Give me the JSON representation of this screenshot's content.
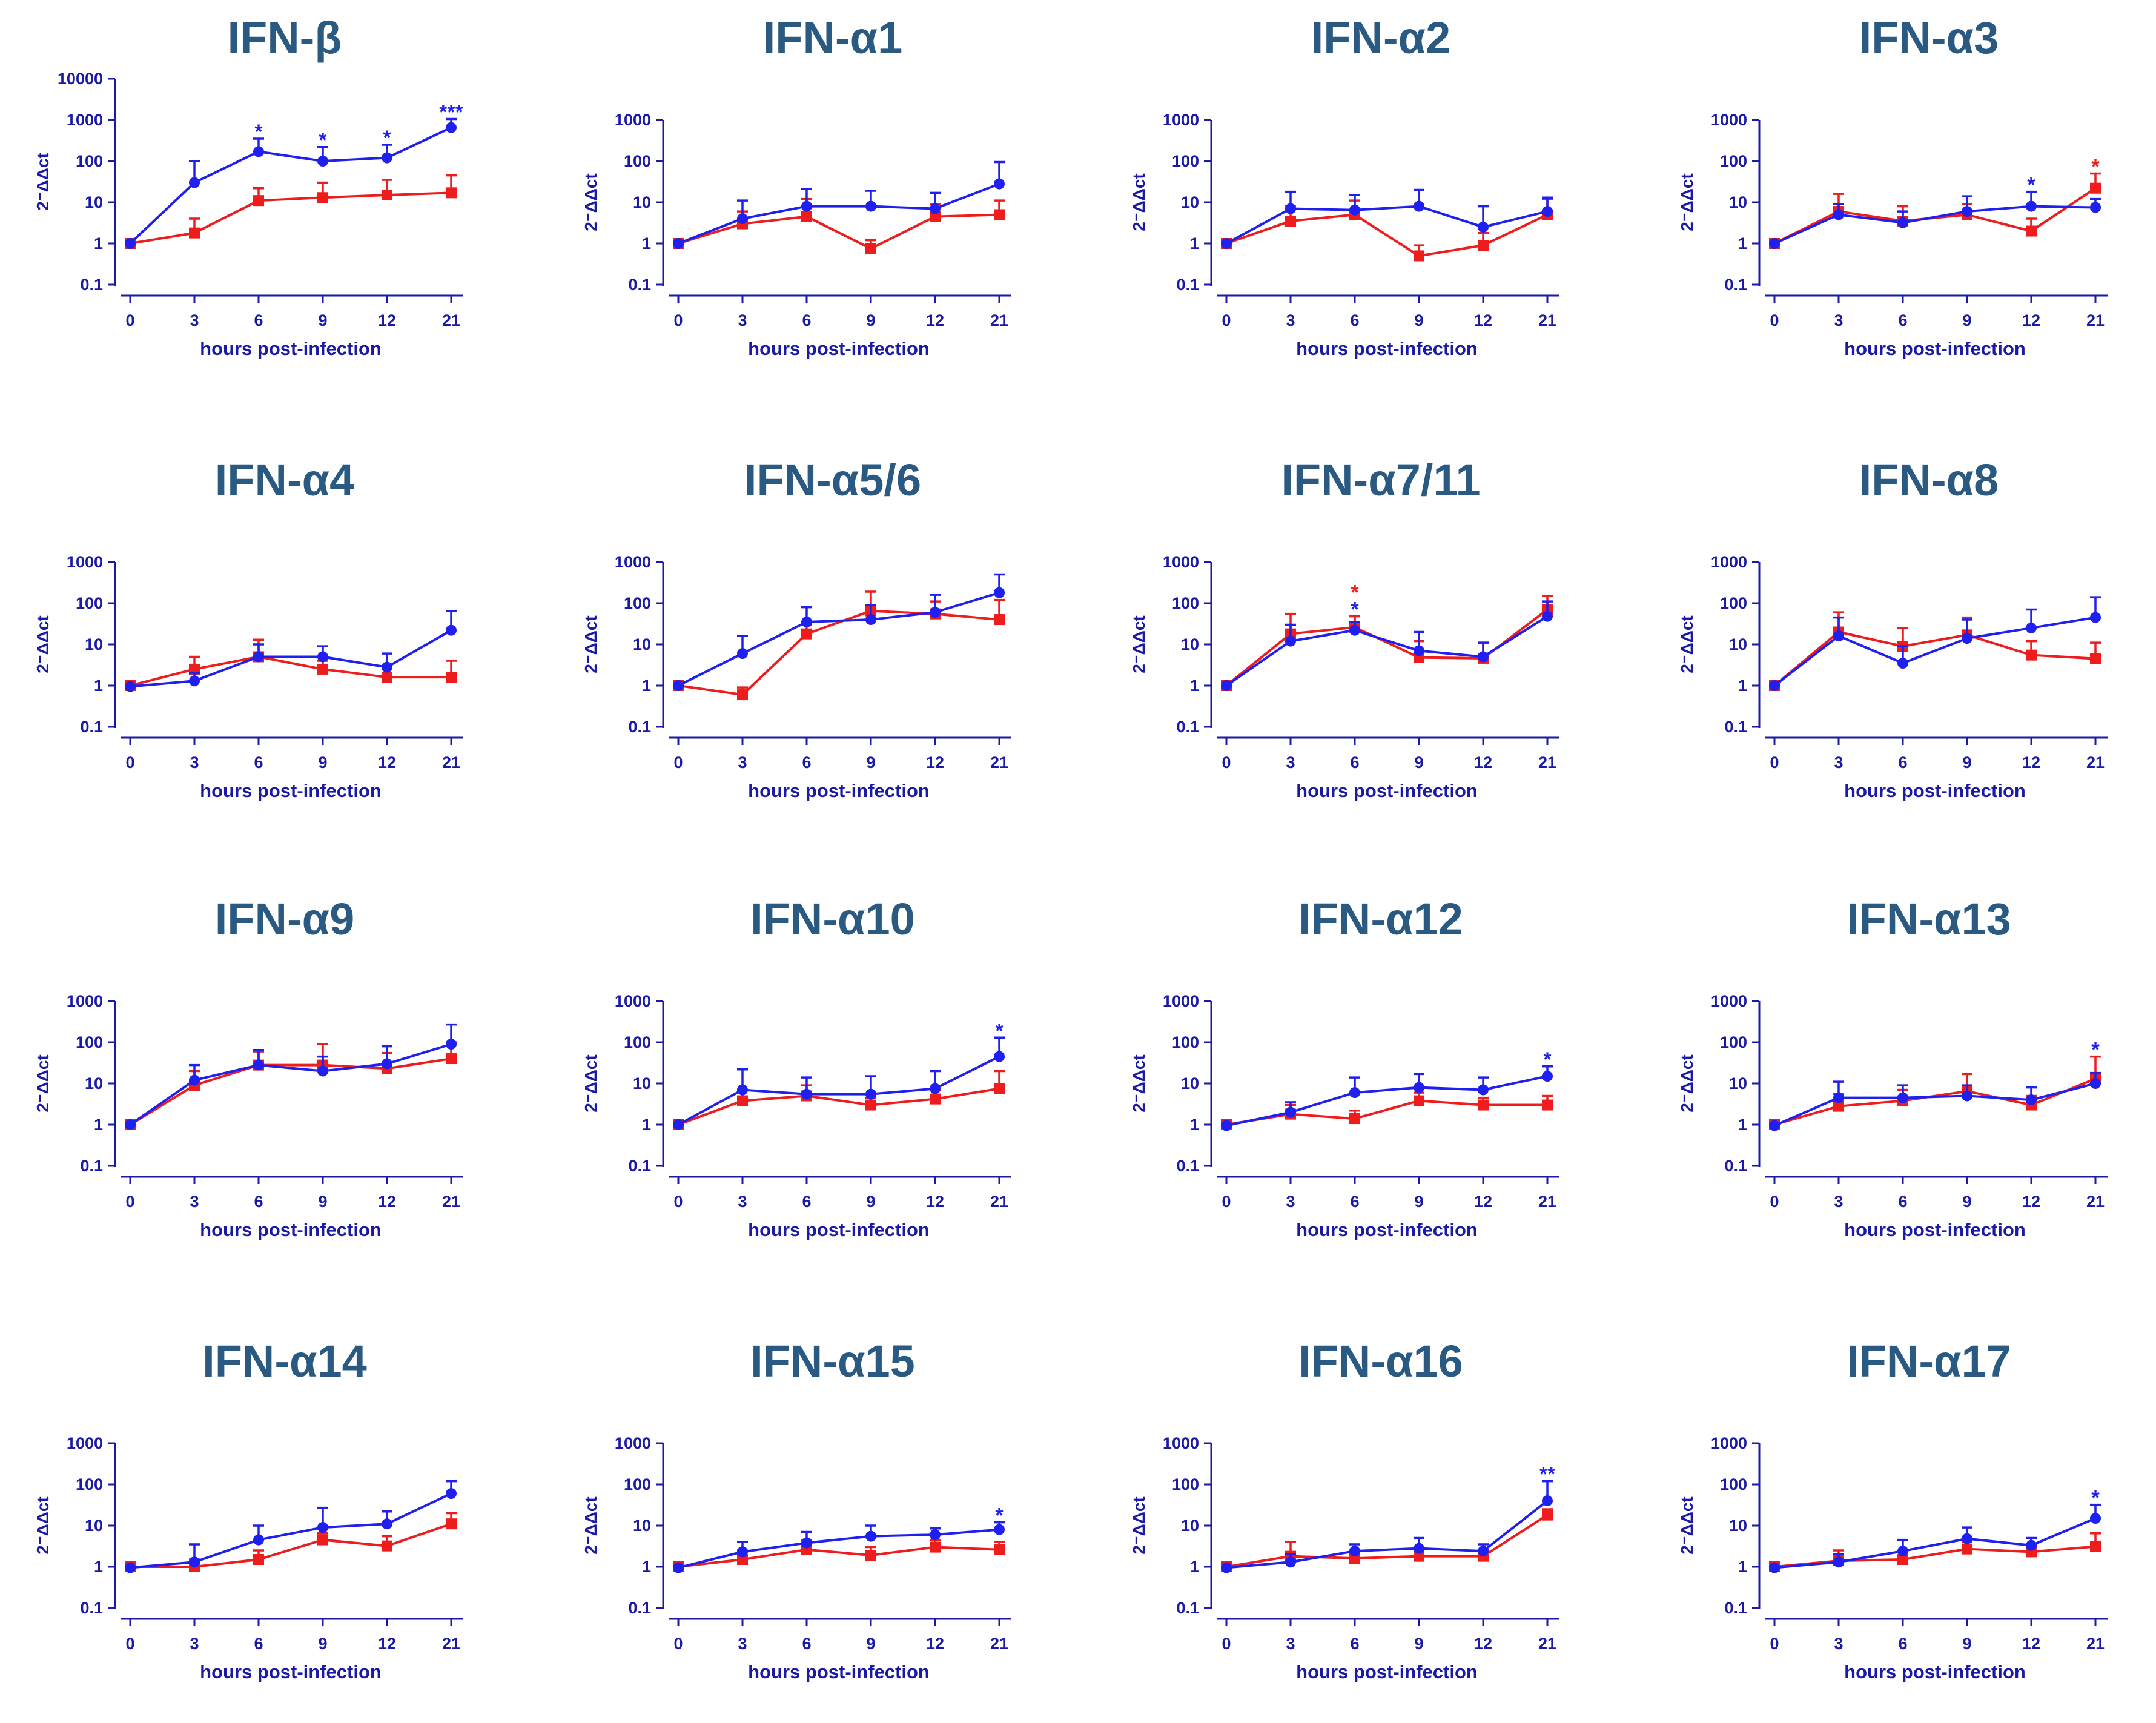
{
  "colors": {
    "infected": "#1f1fef",
    "control": "#ee1c1c",
    "axis": "#1a1aa6",
    "title": "#2a5a82"
  },
  "chart_data": [
    {
      "type": "line",
      "title": "IFN-β",
      "xlabel": "hours post-infection",
      "ylabel": "2⁻ΔΔct",
      "categories": [
        "0",
        "3",
        "6",
        "9",
        "12",
        "21"
      ],
      "yticks": [
        "0.1",
        "1",
        "10",
        "100",
        "1000",
        "10000"
      ],
      "ylim": [
        0.1,
        10000
      ],
      "yscale": "log",
      "series": [
        {
          "name": "blue",
          "values": [
            1,
            30,
            170,
            100,
            120,
            650
          ],
          "err_upper": [
            1,
            100,
            350,
            220,
            250,
            1050
          ]
        },
        {
          "name": "red",
          "values": [
            1,
            1.8,
            11,
            13,
            15,
            17
          ],
          "err_upper": [
            1,
            4,
            22,
            30,
            35,
            45
          ]
        }
      ],
      "annotations": [
        {
          "x": "6",
          "text": "*",
          "series": "blue"
        },
        {
          "x": "9",
          "text": "*",
          "series": "blue"
        },
        {
          "x": "12",
          "text": "*",
          "series": "blue"
        },
        {
          "x": "21",
          "text": "***",
          "series": "blue"
        }
      ]
    },
    {
      "type": "line",
      "title": "IFN-α1",
      "xlabel": "hours post-infection",
      "ylabel": "2⁻ΔΔct",
      "categories": [
        "0",
        "3",
        "6",
        "9",
        "12",
        "21"
      ],
      "yticks": [
        "0.1",
        "1",
        "10",
        "100",
        "1000"
      ],
      "ylim": [
        0.1,
        1000
      ],
      "yscale": "log",
      "series": [
        {
          "name": "blue",
          "values": [
            1,
            4,
            8,
            8,
            7,
            28
          ],
          "err_upper": [
            1,
            11,
            21,
            19,
            17,
            95
          ]
        },
        {
          "name": "red",
          "values": [
            1,
            3,
            4.5,
            0.75,
            4.5,
            5
          ],
          "err_upper": [
            1,
            6,
            12,
            1.2,
            9,
            11
          ]
        }
      ],
      "annotations": []
    },
    {
      "type": "line",
      "title": "IFN-α2",
      "xlabel": "hours post-infection",
      "ylabel": "2⁻ΔΔct",
      "categories": [
        "0",
        "3",
        "6",
        "9",
        "12",
        "21"
      ],
      "yticks": [
        "0.1",
        "1",
        "10",
        "100",
        "1000"
      ],
      "ylim": [
        0.1,
        1000
      ],
      "yscale": "log",
      "series": [
        {
          "name": "blue",
          "values": [
            1,
            7,
            6.5,
            8,
            2.5,
            6
          ],
          "err_upper": [
            1,
            18,
            15,
            20,
            8,
            13
          ]
        },
        {
          "name": "red",
          "values": [
            1,
            3.5,
            5,
            0.5,
            0.9,
            5
          ],
          "err_upper": [
            1,
            8,
            11,
            0.9,
            1.8,
            12
          ]
        }
      ],
      "annotations": []
    },
    {
      "type": "line",
      "title": "IFN-α3",
      "xlabel": "hours post-infection",
      "ylabel": "2⁻ΔΔct",
      "categories": [
        "0",
        "3",
        "6",
        "9",
        "12",
        "21"
      ],
      "yticks": [
        "0.1",
        "1",
        "10",
        "100",
        "1000"
      ],
      "ylim": [
        0.1,
        1000
      ],
      "yscale": "log",
      "series": [
        {
          "name": "blue",
          "values": [
            1,
            5,
            3.2,
            6,
            8,
            7.5
          ],
          "err_upper": [
            1,
            9,
            6,
            14,
            18,
            12
          ]
        },
        {
          "name": "red",
          "values": [
            1,
            6,
            3.5,
            5,
            2,
            22
          ],
          "err_upper": [
            1,
            16,
            8,
            9,
            4,
            50
          ]
        }
      ],
      "annotations": [
        {
          "x": "12",
          "text": "*",
          "series": "blue"
        },
        {
          "x": "21",
          "text": "*",
          "series": "red"
        }
      ]
    },
    {
      "type": "line",
      "title": "IFN-α4",
      "xlabel": "hours post-infection",
      "ylabel": "2⁻ΔΔct",
      "categories": [
        "0",
        "3",
        "6",
        "9",
        "12",
        "21"
      ],
      "yticks": [
        "0.1",
        "1",
        "10",
        "100",
        "1000"
      ],
      "ylim": [
        0.1,
        1000
      ],
      "yscale": "log",
      "series": [
        {
          "name": "blue",
          "values": [
            0.95,
            1.3,
            5,
            5,
            2.8,
            22
          ],
          "err_upper": [
            1,
            2,
            10,
            9,
            6,
            65
          ]
        },
        {
          "name": "red",
          "values": [
            1,
            2.5,
            5,
            2.5,
            1.6,
            1.6
          ],
          "err_upper": [
            1,
            5,
            13,
            4,
            2.5,
            4
          ]
        }
      ],
      "annotations": []
    },
    {
      "type": "line",
      "title": "IFN-α5/6",
      "xlabel": "hours post-infection",
      "ylabel": "2⁻ΔΔct",
      "categories": [
        "0",
        "3",
        "6",
        "9",
        "12",
        "21"
      ],
      "yticks": [
        "0.1",
        "1",
        "10",
        "100",
        "1000"
      ],
      "ylim": [
        0.1,
        1000
      ],
      "yscale": "log",
      "series": [
        {
          "name": "blue",
          "values": [
            1,
            6,
            35,
            40,
            60,
            180
          ],
          "err_upper": [
            1,
            16,
            80,
            90,
            160,
            500
          ]
        },
        {
          "name": "red",
          "values": [
            1,
            0.6,
            18,
            65,
            55,
            40
          ],
          "err_upper": [
            1,
            0.9,
            30,
            190,
            110,
            120
          ]
        }
      ],
      "annotations": []
    },
    {
      "type": "line",
      "title": "IFN-α7/11",
      "xlabel": "hours post-infection",
      "ylabel": "2⁻ΔΔct",
      "categories": [
        "0",
        "3",
        "6",
        "9",
        "12",
        "21"
      ],
      "yticks": [
        "0.1",
        "1",
        "10",
        "100",
        "1000"
      ],
      "ylim": [
        0.1,
        1000
      ],
      "yscale": "log",
      "series": [
        {
          "name": "blue",
          "values": [
            1,
            12,
            22,
            7,
            5,
            48
          ],
          "err_upper": [
            1,
            30,
            35,
            20,
            11,
            110
          ]
        },
        {
          "name": "red",
          "values": [
            1,
            18,
            26,
            4.8,
            4.6,
            70
          ],
          "err_upper": [
            1,
            55,
            48,
            12,
            11,
            150
          ]
        }
      ],
      "annotations": [
        {
          "x": "6",
          "text": "*",
          "series": "blue"
        },
        {
          "x": "6",
          "text": "*",
          "series": "red"
        }
      ]
    },
    {
      "type": "line",
      "title": "IFN-α8",
      "xlabel": "hours post-infection",
      "ylabel": "2⁻ΔΔct",
      "categories": [
        "0",
        "3",
        "6",
        "9",
        "12",
        "21"
      ],
      "yticks": [
        "0.1",
        "1",
        "10",
        "100",
        "1000"
      ],
      "ylim": [
        0.1,
        1000
      ],
      "yscale": "log",
      "series": [
        {
          "name": "blue",
          "values": [
            1,
            16,
            3.5,
            14,
            25,
            45
          ],
          "err_upper": [
            1,
            45,
            9,
            40,
            70,
            140
          ]
        },
        {
          "name": "red",
          "values": [
            1,
            20,
            9,
            17,
            5.5,
            4.5
          ],
          "err_upper": [
            1,
            60,
            25,
            45,
            12,
            11
          ]
        }
      ],
      "annotations": []
    },
    {
      "type": "line",
      "title": "IFN-α9",
      "xlabel": "hours post-infection",
      "ylabel": "2⁻ΔΔct",
      "categories": [
        "0",
        "3",
        "6",
        "9",
        "12",
        "21"
      ],
      "yticks": [
        "0.1",
        "1",
        "10",
        "100",
        "1000"
      ],
      "ylim": [
        0.1,
        1000
      ],
      "yscale": "log",
      "series": [
        {
          "name": "blue",
          "values": [
            1,
            12,
            28,
            20,
            30,
            90
          ],
          "err_upper": [
            1,
            28,
            65,
            45,
            80,
            270
          ]
        },
        {
          "name": "red",
          "values": [
            1,
            9,
            28,
            28,
            23,
            40
          ],
          "err_upper": [
            1,
            20,
            60,
            90,
            55,
            100
          ]
        }
      ],
      "annotations": []
    },
    {
      "type": "line",
      "title": "IFN-α10",
      "xlabel": "hours post-infection",
      "ylabel": "2⁻ΔΔct",
      "categories": [
        "0",
        "3",
        "6",
        "9",
        "12",
        "21"
      ],
      "yticks": [
        "0.1",
        "1",
        "10",
        "100",
        "1000"
      ],
      "ylim": [
        0.1,
        1000
      ],
      "yscale": "log",
      "series": [
        {
          "name": "blue",
          "values": [
            1,
            7,
            5.5,
            5.5,
            7.5,
            45
          ],
          "err_upper": [
            1,
            22,
            14,
            15,
            20,
            130
          ]
        },
        {
          "name": "red",
          "values": [
            1,
            3.8,
            5,
            3,
            4.2,
            7.5
          ],
          "err_upper": [
            1,
            7,
            9,
            4.5,
            7,
            20
          ]
        }
      ],
      "annotations": [
        {
          "x": "21",
          "text": "*",
          "series": "blue"
        }
      ]
    },
    {
      "type": "line",
      "title": "IFN-α12",
      "xlabel": "hours post-infection",
      "ylabel": "2⁻ΔΔct",
      "categories": [
        "0",
        "3",
        "6",
        "9",
        "12",
        "21"
      ],
      "yticks": [
        "0.1",
        "1",
        "10",
        "100",
        "1000"
      ],
      "ylim": [
        0.1,
        1000
      ],
      "yscale": "log",
      "series": [
        {
          "name": "blue",
          "values": [
            0.95,
            2,
            6,
            8,
            7,
            15
          ],
          "err_upper": [
            1,
            3.5,
            14,
            17,
            14,
            26
          ]
        },
        {
          "name": "red",
          "values": [
            1,
            1.8,
            1.4,
            3.8,
            3,
            3
          ],
          "err_upper": [
            1,
            3,
            2.2,
            6,
            4.5,
            5
          ]
        }
      ],
      "annotations": [
        {
          "x": "21",
          "text": "*",
          "series": "blue"
        }
      ]
    },
    {
      "type": "line",
      "title": "IFN-α13",
      "xlabel": "hours post-infection",
      "ylabel": "2⁻ΔΔct",
      "categories": [
        "0",
        "3",
        "6",
        "9",
        "12",
        "21"
      ],
      "yticks": [
        "0.1",
        "1",
        "10",
        "100",
        "1000"
      ],
      "ylim": [
        0.1,
        1000
      ],
      "yscale": "log",
      "series": [
        {
          "name": "blue",
          "values": [
            0.95,
            4.5,
            4.5,
            5,
            4,
            10
          ],
          "err_upper": [
            1,
            11,
            9,
            9,
            8,
            18
          ]
        },
        {
          "name": "red",
          "values": [
            1,
            2.8,
            3.8,
            6.5,
            3,
            13
          ],
          "err_upper": [
            1,
            5.5,
            7,
            17,
            5,
            45
          ]
        }
      ],
      "annotations": [
        {
          "x": "21",
          "text": "*",
          "series": "blue"
        }
      ]
    },
    {
      "type": "line",
      "title": "IFN-α14",
      "xlabel": "hours post-infection",
      "ylabel": "2⁻ΔΔct",
      "categories": [
        "0",
        "3",
        "6",
        "9",
        "12",
        "21"
      ],
      "yticks": [
        "0.1",
        "1",
        "10",
        "100",
        "1000"
      ],
      "ylim": [
        0.1,
        1000
      ],
      "yscale": "log",
      "series": [
        {
          "name": "blue",
          "values": [
            0.95,
            1.3,
            4.5,
            9,
            11,
            60
          ],
          "err_upper": [
            1,
            3.5,
            10,
            27,
            22,
            120
          ]
        },
        {
          "name": "red",
          "values": [
            1,
            1,
            1.5,
            4.5,
            3.2,
            11
          ],
          "err_upper": [
            1,
            1.5,
            2.5,
            6.5,
            5.5,
            20
          ]
        }
      ],
      "annotations": []
    },
    {
      "type": "line",
      "title": "IFN-α15",
      "xlabel": "hours post-infection",
      "ylabel": "2⁻ΔΔct",
      "categories": [
        "0",
        "3",
        "6",
        "9",
        "12",
        "21"
      ],
      "yticks": [
        "0.1",
        "1",
        "10",
        "100",
        "1000"
      ],
      "ylim": [
        0.1,
        1000
      ],
      "yscale": "log",
      "series": [
        {
          "name": "blue",
          "values": [
            0.95,
            2.3,
            3.8,
            5.5,
            6,
            8
          ],
          "err_upper": [
            1,
            4,
            7,
            10,
            8.5,
            12
          ]
        },
        {
          "name": "red",
          "values": [
            1,
            1.5,
            2.6,
            1.9,
            3,
            2.6
          ],
          "err_upper": [
            1,
            2.5,
            4.5,
            3,
            4.5,
            4
          ]
        }
      ],
      "annotations": [
        {
          "x": "21",
          "text": "*",
          "series": "blue"
        }
      ]
    },
    {
      "type": "line",
      "title": "IFN-α16",
      "xlabel": "hours post-infection",
      "ylabel": "2⁻ΔΔct",
      "categories": [
        "0",
        "3",
        "6",
        "9",
        "12",
        "21"
      ],
      "yticks": [
        "0.1",
        "1",
        "10",
        "100",
        "1000"
      ],
      "ylim": [
        0.1,
        1000
      ],
      "yscale": "log",
      "series": [
        {
          "name": "blue",
          "values": [
            0.95,
            1.3,
            2.4,
            2.8,
            2.4,
            40
          ],
          "err_upper": [
            1,
            2,
            3.5,
            5,
            3.5,
            120
          ]
        },
        {
          "name": "red",
          "values": [
            1,
            1.8,
            1.6,
            1.8,
            1.8,
            18
          ],
          "err_upper": [
            1,
            4,
            2.5,
            3,
            2.5,
            25
          ]
        }
      ],
      "annotations": [
        {
          "x": "21",
          "text": "**",
          "series": "blue"
        }
      ]
    },
    {
      "type": "line",
      "title": "IFN-α17",
      "xlabel": "hours post-infection",
      "ylabel": "2⁻ΔΔct",
      "categories": [
        "0",
        "3",
        "6",
        "9",
        "12",
        "21"
      ],
      "yticks": [
        "0.1",
        "1",
        "10",
        "100",
        "1000"
      ],
      "ylim": [
        0.1,
        1000
      ],
      "yscale": "log",
      "series": [
        {
          "name": "blue",
          "values": [
            0.95,
            1.3,
            2.4,
            4.8,
            3.3,
            15
          ],
          "err_upper": [
            1,
            2,
            4.5,
            9,
            5,
            32
          ]
        },
        {
          "name": "red",
          "values": [
            1,
            1.4,
            1.5,
            2.7,
            2.3,
            3.1
          ],
          "err_upper": [
            1,
            2.5,
            2.3,
            4,
            3.3,
            6.5
          ]
        }
      ],
      "annotations": [
        {
          "x": "21",
          "text": "*",
          "series": "blue"
        }
      ]
    }
  ]
}
